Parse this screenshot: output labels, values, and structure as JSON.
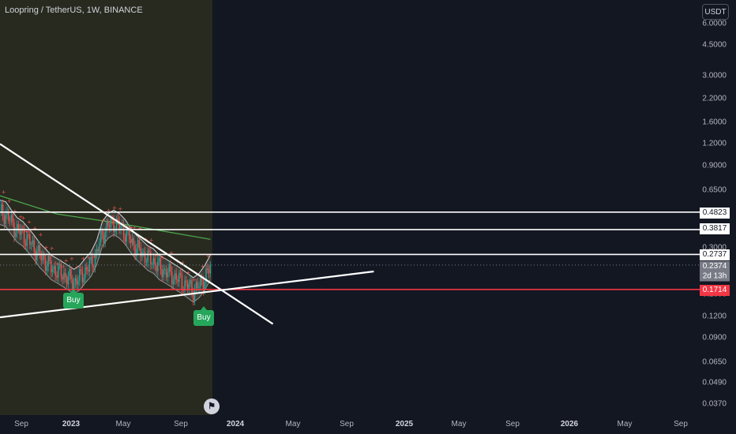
{
  "header": {
    "title": "Loopring / TetherUS, 1W, BINANCE",
    "currency_button": "USDT"
  },
  "theme": {
    "background": "#131722",
    "history_shade": "#3a3a1d",
    "candle_up": "#26a69a",
    "candle_down": "#ef5350",
    "buy_label": "#26a65b",
    "level_red": "#f23645",
    "white": "#ffffff"
  },
  "y_axis_ticks": [
    "6.0000",
    "4.5000",
    "3.0000",
    "2.2000",
    "1.6000",
    "1.2000",
    "0.9000",
    "0.6500",
    "0.4800",
    "0.3800",
    "0.3000",
    "0.2300",
    "0.1600",
    "0.1200",
    "0.0900",
    "0.0650",
    "0.0490",
    "0.0370"
  ],
  "x_axis_ticks": [
    {
      "label": "Sep",
      "bold": false
    },
    {
      "label": "2023",
      "bold": true
    },
    {
      "label": "May",
      "bold": false
    },
    {
      "label": "Sep",
      "bold": false
    },
    {
      "label": "2024",
      "bold": true
    },
    {
      "label": "May",
      "bold": false
    },
    {
      "label": "Sep",
      "bold": false
    },
    {
      "label": "2025",
      "bold": true
    },
    {
      "label": "May",
      "bold": false
    },
    {
      "label": "Sep",
      "bold": false
    },
    {
      "label": "2026",
      "bold": true
    },
    {
      "label": "May",
      "bold": false
    },
    {
      "label": "Sep",
      "bold": false
    }
  ],
  "price_labels": {
    "level_1": "0.4823",
    "level_2": "0.3817",
    "level_3": "0.2737",
    "current_price": "0.2374",
    "countdown": "2d 13h",
    "support": "0.1714"
  },
  "signals": {
    "buy_1": "Buy",
    "buy_2": "Buy"
  },
  "chart_data": {
    "type": "candlestick",
    "title": "Loopring / TetherUS, 1W, BINANCE",
    "y_scale": "log",
    "ylim": [
      0.0345,
      6.5
    ],
    "x_range": [
      "2022-07",
      "2026-10"
    ],
    "horizontal_levels": [
      0.4823,
      0.3817,
      0.2737,
      0.1714
    ],
    "current_price": 0.2374,
    "series": [
      {
        "name": "",
        "points": [
          [
            0,
            0.48
          ],
          [
            4,
            0.47
          ],
          [
            8,
            0.42
          ],
          [
            12,
            0.38
          ],
          [
            16,
            0.36
          ],
          [
            20,
            0.33
          ],
          [
            24,
            0.3
          ],
          [
            28,
            0.27
          ],
          [
            32,
            0.25
          ],
          [
            36,
            0.23
          ],
          [
            40,
            0.22
          ],
          [
            44,
            0.21
          ],
          [
            48,
            0.2
          ],
          [
            52,
            0.19
          ],
          [
            56,
            0.2
          ],
          [
            60,
            0.22
          ],
          [
            64,
            0.24
          ],
          [
            68,
            0.28
          ],
          [
            72,
            0.36
          ],
          [
            76,
            0.4
          ],
          [
            80,
            0.42
          ],
          [
            84,
            0.4
          ],
          [
            88,
            0.37
          ],
          [
            92,
            0.33
          ],
          [
            96,
            0.3
          ],
          [
            100,
            0.28
          ],
          [
            104,
            0.26
          ],
          [
            108,
            0.25
          ],
          [
            112,
            0.23
          ],
          [
            116,
            0.22
          ],
          [
            120,
            0.21
          ],
          [
            124,
            0.2
          ],
          [
            128,
            0.19
          ],
          [
            132,
            0.18
          ],
          [
            136,
            0.17
          ],
          [
            140,
            0.18
          ],
          [
            144,
            0.2
          ],
          [
            148,
            0.23
          ]
        ]
      },
      {
        "name": "",
        "points": [
          [
            0,
            0.6
          ],
          [
            40,
            0.47
          ],
          [
            80,
            0.42
          ],
          [
            110,
            0.38
          ],
          [
            148,
            0.335
          ]
        ]
      }
    ],
    "trendlines": [
      {
        "from": [
          0,
          1.2
        ],
        "to": [
          192,
          0.108
        ]
      },
      {
        "from": [
          0,
          0.118
        ],
        "to": [
          263,
          0.218
        ]
      }
    ],
    "signals": [
      {
        "type": "Buy",
        "week": 48,
        "price": 0.148
      },
      {
        "type": "Buy",
        "week": 138,
        "price": 0.129
      }
    ]
  }
}
